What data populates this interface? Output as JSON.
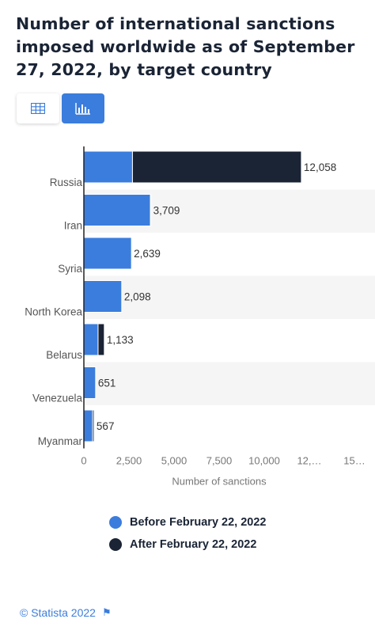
{
  "title": "Number of international sanctions imposed worldwide as of September 27, 2022, by target country",
  "toggles": {
    "table_icon": "table-icon",
    "bar_icon": "bar-chart-icon"
  },
  "colors": {
    "before": "#3b7ddd",
    "after": "#1a2435",
    "accent": "#3b7ddd"
  },
  "chart_data": {
    "type": "bar",
    "orientation": "horizontal",
    "stacked": true,
    "categories": [
      "Russia",
      "Iran",
      "Syria",
      "North Korea",
      "Belarus",
      "Venezuela",
      "Myanmar"
    ],
    "series": [
      {
        "name": "Before February 22, 2022",
        "values": [
          2695,
          3691,
          2639,
          2098,
          788,
          651,
          487
        ]
      },
      {
        "name": "After February 22, 2022",
        "values": [
          9363,
          18,
          0,
          0,
          345,
          0,
          80
        ]
      }
    ],
    "totals": [
      "12,058",
      "3,709",
      "2,639",
      "2,098",
      "1,133",
      "651",
      "567"
    ],
    "xticks": [
      "0",
      "2,500",
      "5,000",
      "7,500",
      "10,000",
      "12,…",
      "15…"
    ],
    "xtick_values": [
      0,
      2500,
      5000,
      7500,
      10000,
      12500,
      15000
    ],
    "xlabel": "Number of sanctions",
    "xlim": [
      0,
      15000
    ],
    "grid": "alternating row shading",
    "legend_position": "bottom"
  },
  "footer": {
    "text": "© Statista 2022"
  }
}
